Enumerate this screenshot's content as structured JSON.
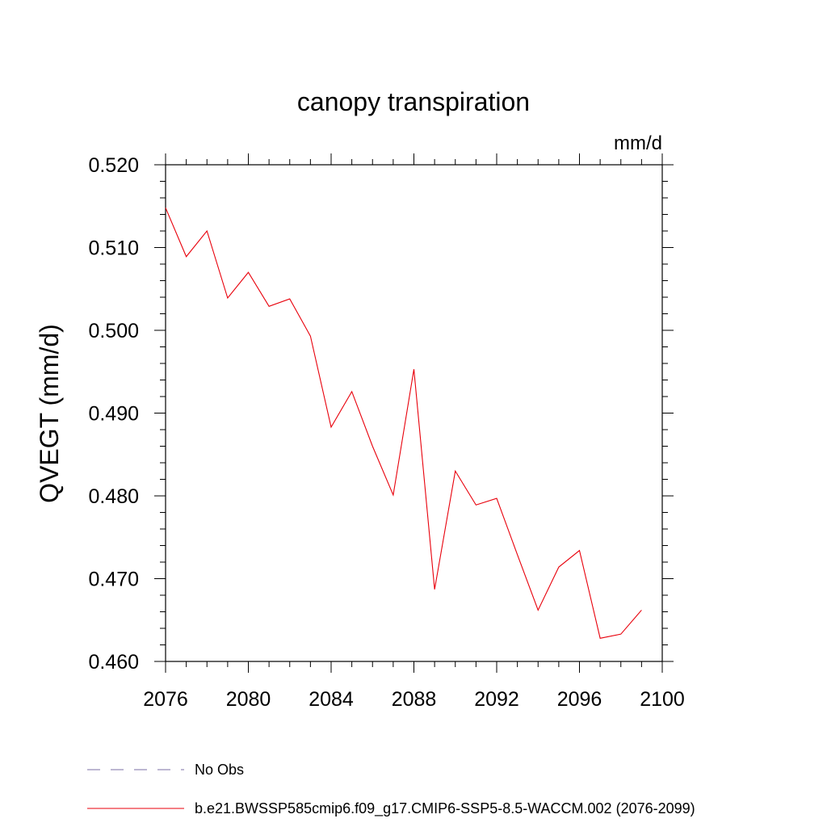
{
  "chart_data": {
    "type": "line",
    "title": "canopy transpiration",
    "units_label": "mm/d",
    "ylabel": "QVEGT  (mm/d)",
    "xlabel": "",
    "xlim": [
      2076,
      2100
    ],
    "ylim": [
      0.46,
      0.52
    ],
    "x_ticks": [
      2076,
      2080,
      2084,
      2088,
      2092,
      2096,
      2100
    ],
    "x_tick_labels": [
      "2076",
      "2080",
      "2084",
      "2088",
      "2092",
      "2096",
      "2100"
    ],
    "y_ticks": [
      0.46,
      0.47,
      0.48,
      0.49,
      0.5,
      0.51,
      0.52
    ],
    "y_tick_labels": [
      "0.460",
      "0.470",
      "0.480",
      "0.490",
      "0.500",
      "0.510",
      "0.520"
    ],
    "grid": false,
    "legend_position": "bottom",
    "legend": [
      {
        "label": "No Obs",
        "color": "#7b6fa6",
        "style": "dashed"
      },
      {
        "label": "b.e21.BWSSP585cmip6.f09_g17.CMIP6-SSP5-8.5-WACCM.002 (2076-2099)",
        "color": "#e8000b",
        "style": "solid"
      }
    ],
    "series": [
      {
        "color": "#e8000b",
        "x": [
          2076,
          2077,
          2078,
          2079,
          2080,
          2081,
          2082,
          2083,
          2084,
          2085,
          2086,
          2087,
          2088,
          2089,
          2090,
          2091,
          2092,
          2093,
          2094,
          2095,
          2096,
          2097,
          2098,
          2099
        ],
        "values": [
          0.5148,
          0.5089,
          0.512,
          0.5039,
          0.507,
          0.5029,
          0.5038,
          0.4993,
          0.4883,
          0.4926,
          0.486,
          0.4801,
          0.4953,
          0.4687,
          0.483,
          0.4789,
          0.4797,
          0.4729,
          0.4662,
          0.4714,
          0.4734,
          0.4628,
          0.4633,
          0.4662
        ]
      }
    ]
  }
}
